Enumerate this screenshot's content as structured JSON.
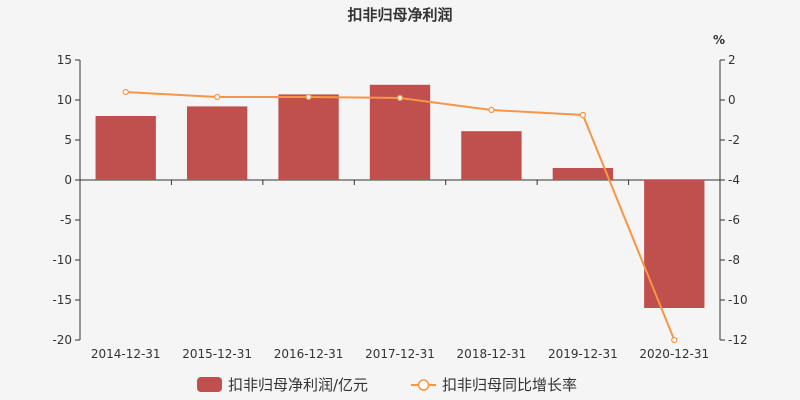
{
  "chart_data": {
    "type": "bar+line",
    "title": "扣非归母净利润",
    "categories": [
      "2014-12-31",
      "2015-12-31",
      "2016-12-31",
      "2017-12-31",
      "2018-12-31",
      "2019-12-31",
      "2020-12-31"
    ],
    "series": [
      {
        "name": "扣非归母净利润/亿元",
        "type": "bar",
        "axis": "left",
        "color": "#c0504d",
        "values": [
          8.0,
          9.2,
          10.7,
          11.9,
          6.1,
          1.5,
          -16.0
        ]
      },
      {
        "name": "扣非归母同比增长率",
        "type": "line",
        "axis": "right",
        "color": "#f79646",
        "values": [
          0.4,
          0.15,
          0.15,
          0.1,
          -0.5,
          -0.75,
          -12.0
        ]
      }
    ],
    "y_left": {
      "min": -20,
      "max": 15,
      "ticks": [
        15,
        10,
        5,
        0,
        -5,
        -10,
        -15,
        -20
      ]
    },
    "y_right": {
      "min": -12,
      "max": 2,
      "unit": "%",
      "ticks": [
        2,
        0,
        -2,
        -4,
        -6,
        -8,
        -10,
        -12
      ]
    },
    "legend_position": "bottom-center",
    "grid": false
  }
}
